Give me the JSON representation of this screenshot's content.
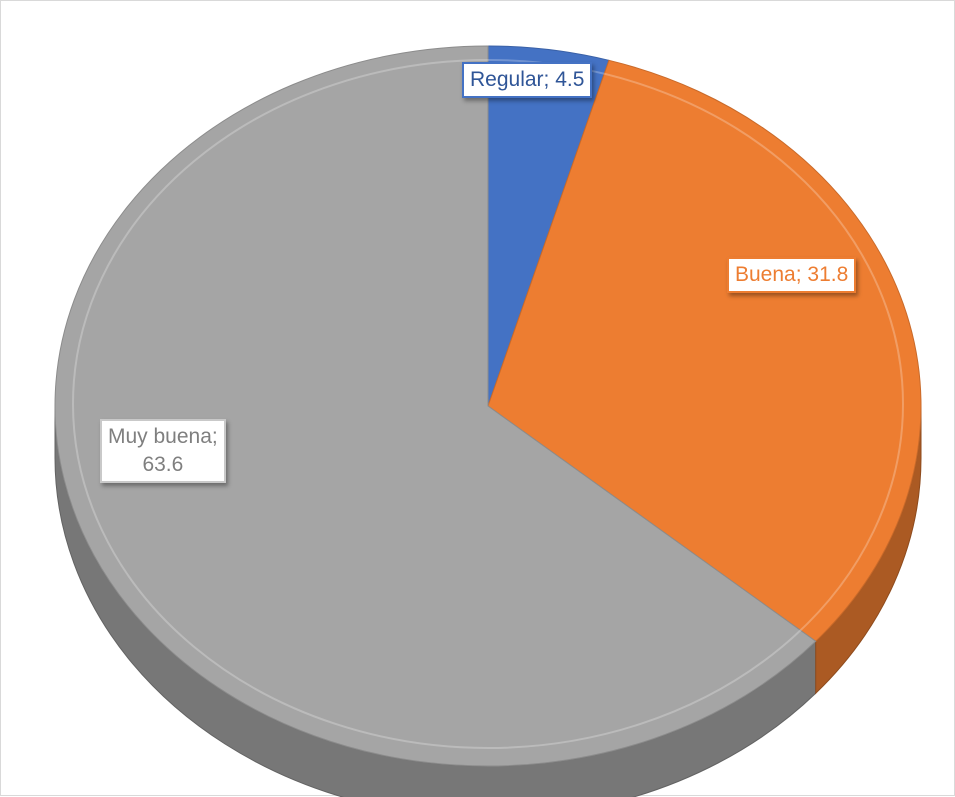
{
  "chart_data": {
    "type": "pie",
    "title": "",
    "slices": [
      {
        "label": "Regular",
        "value": 4.5,
        "color": "#4472c4",
        "text": "Regular; 4.5"
      },
      {
        "label": "Buena",
        "value": 31.8,
        "color": "#ed7d31",
        "text": "Buena; 31.8"
      },
      {
        "label": "Muy buena",
        "value": 63.6,
        "color": "#a5a5a5",
        "text": "Muy buena;\n63.6"
      }
    ],
    "style": "3d-pie",
    "legend": "none"
  }
}
